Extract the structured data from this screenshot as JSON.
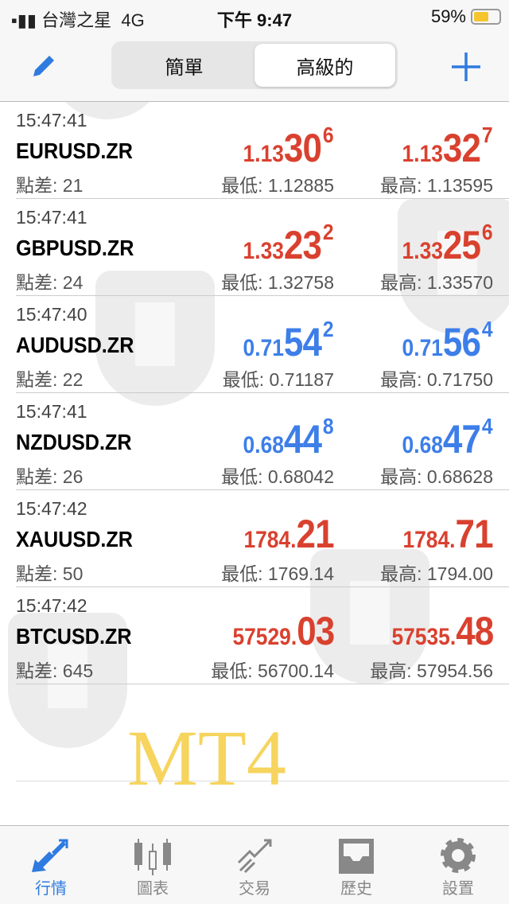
{
  "status_bar": {
    "carrier": "台灣之星",
    "network": "4G",
    "time": "下午 9:47",
    "battery": "59%",
    "battery_level": 0.59
  },
  "header": {
    "segments": [
      "簡單",
      "高級的"
    ],
    "active_segment": 1
  },
  "colors": {
    "down": "#d9412f",
    "up": "#3d7ee8",
    "accent": "#2f7be0"
  },
  "quotes": [
    {
      "time": "15:47:41",
      "symbol": "EURUSD.ZR",
      "spread": "點差: 21",
      "color": "red",
      "bid": {
        "pre": "1.13",
        "big": "30",
        "sup": "6"
      },
      "ask": {
        "pre": "1.13",
        "big": "32",
        "sup": "7"
      },
      "low": "最低: 1.12885",
      "high": "最高: 1.13595"
    },
    {
      "time": "15:47:41",
      "symbol": "GBPUSD.ZR",
      "spread": "點差: 24",
      "color": "red",
      "bid": {
        "pre": "1.33",
        "big": "23",
        "sup": "2"
      },
      "ask": {
        "pre": "1.33",
        "big": "25",
        "sup": "6"
      },
      "low": "最低: 1.32758",
      "high": "最高: 1.33570"
    },
    {
      "time": "15:47:40",
      "symbol": "AUDUSD.ZR",
      "spread": "點差: 22",
      "color": "blue",
      "bid": {
        "pre": "0.71",
        "big": "54",
        "sup": "2"
      },
      "ask": {
        "pre": "0.71",
        "big": "56",
        "sup": "4"
      },
      "low": "最低: 0.71187",
      "high": "最高: 0.71750"
    },
    {
      "time": "15:47:41",
      "symbol": "NZDUSD.ZR",
      "spread": "點差: 26",
      "color": "blue",
      "bid": {
        "pre": "0.68",
        "big": "44",
        "sup": "8"
      },
      "ask": {
        "pre": "0.68",
        "big": "47",
        "sup": "4"
      },
      "low": "最低: 0.68042",
      "high": "最高: 0.68628"
    },
    {
      "time": "15:47:42",
      "symbol": "XAUUSD.ZR",
      "spread": "點差: 50",
      "color": "red",
      "bid": {
        "pre": "1784.",
        "big": "21",
        "sup": ""
      },
      "ask": {
        "pre": "1784.",
        "big": "71",
        "sup": ""
      },
      "low": "最低: 1769.14",
      "high": "最高: 1794.00"
    },
    {
      "time": "15:47:42",
      "symbol": "BTCUSD.ZR",
      "spread": "點差: 645",
      "color": "red",
      "bid": {
        "pre": "57529.",
        "big": "03",
        "sup": ""
      },
      "ask": {
        "pre": "57535.",
        "big": "48",
        "sup": ""
      },
      "low": "最低: 56700.14",
      "high": "最高: 57954.56"
    }
  ],
  "watermark": "MT4",
  "tabs": [
    {
      "label": "行情",
      "icon": "quotes-arrows-icon"
    },
    {
      "label": "圖表",
      "icon": "candlestick-icon"
    },
    {
      "label": "交易",
      "icon": "trade-icon"
    },
    {
      "label": "歷史",
      "icon": "inbox-icon"
    },
    {
      "label": "設置",
      "icon": "gear-icon"
    }
  ],
  "active_tab": 0
}
